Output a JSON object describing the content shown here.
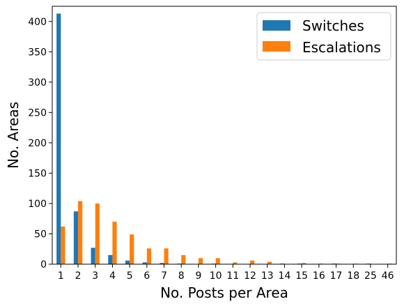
{
  "chart_data": {
    "type": "bar",
    "xlabel": "No. Posts per Area",
    "ylabel": "No. Areas",
    "categories": [
      "1",
      "2",
      "3",
      "4",
      "5",
      "6",
      "7",
      "8",
      "9",
      "10",
      "11",
      "12",
      "13",
      "14",
      "15",
      "16",
      "17",
      "18",
      "25",
      "46"
    ],
    "ylim": [
      0,
      425
    ],
    "yticks": [
      0,
      50,
      100,
      150,
      200,
      250,
      300,
      350,
      400
    ],
    "legend_position": "top-right",
    "grid": false,
    "series": [
      {
        "name": "Switches",
        "color": "#1f77b4",
        "values": [
          413,
          87,
          27,
          15,
          6,
          3,
          2,
          1,
          0,
          1,
          0,
          0,
          0,
          1,
          1,
          0,
          1,
          0,
          1,
          0
        ]
      },
      {
        "name": "Escalations",
        "color": "#ff7f0e",
        "values": [
          62,
          104,
          100,
          70,
          49,
          26,
          26,
          15,
          10,
          10,
          3,
          6,
          4,
          0,
          2,
          1,
          1,
          1,
          0,
          1
        ]
      }
    ]
  }
}
